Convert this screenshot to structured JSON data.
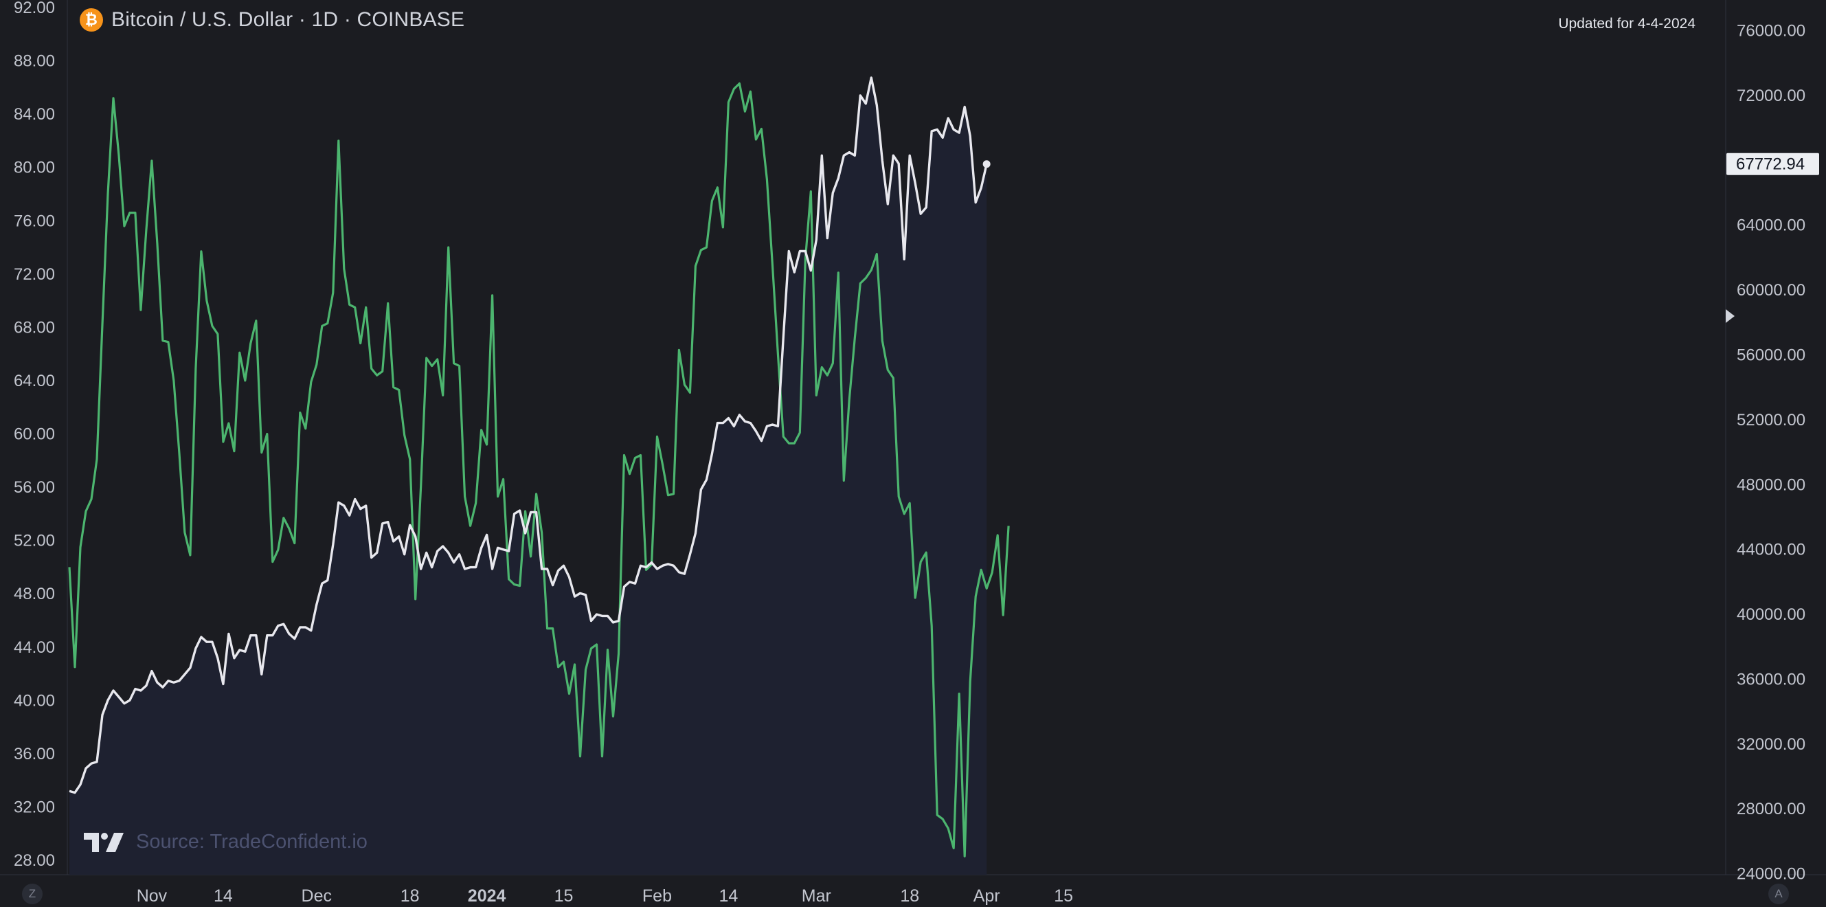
{
  "header": {
    "coin_icon": "bitcoin-icon",
    "coin_symbol": "₿",
    "title": "Bitcoin / U.S. Dollar · 1D · COINBASE",
    "updated": "Updated for 4-4-2024"
  },
  "footer": {
    "logo_icon": "tradingview-logo-icon",
    "source": "Source: TradeConfident.io",
    "left_corner": "Z",
    "right_corner": "A"
  },
  "colors": {
    "background": "#1b1c21",
    "price_line": "#e8e8ee",
    "rsi_line": "#4cb56f",
    "area_fill": "#1e2130",
    "axis_text": "#c2c5ce",
    "divider": "#2f323d"
  },
  "chart_data": {
    "type": "line",
    "title": "Bitcoin / U.S. Dollar · 1D · COINBASE",
    "left_axis": {
      "ylim": [
        28,
        92
      ],
      "ticks": [
        "92.00",
        "88.00",
        "84.00",
        "80.00",
        "76.00",
        "72.00",
        "68.00",
        "64.00",
        "60.00",
        "56.00",
        "52.00",
        "48.00",
        "44.00",
        "40.00",
        "36.00",
        "32.00",
        "28.00"
      ]
    },
    "right_axis": {
      "ylim": [
        22500,
        79500
      ],
      "ticks": [
        "76000.00",
        "72000.00",
        "68000.00",
        "64000.00",
        "60000.00",
        "56000.00",
        "52000.00",
        "48000.00",
        "44000.00",
        "40000.00",
        "36000.00",
        "32000.00",
        "28000.00",
        "24000.00"
      ],
      "last_value_label": "67772.94"
    },
    "x_axis": {
      "start": "2023-10-17",
      "end": "2024-04-04",
      "range": [
        "2023-10-17",
        "2024-04-24"
      ],
      "ticks": [
        {
          "label": "Nov",
          "date": "2023-11-01",
          "bold": false
        },
        {
          "label": "14",
          "date": "2023-11-14",
          "bold": false
        },
        {
          "label": "Dec",
          "date": "2023-12-01",
          "bold": false
        },
        {
          "label": "18",
          "date": "2023-12-18",
          "bold": false
        },
        {
          "label": "2024",
          "date": "2024-01-01",
          "bold": true
        },
        {
          "label": "15",
          "date": "2024-01-15",
          "bold": false
        },
        {
          "label": "Feb",
          "date": "2024-02-01",
          "bold": false
        },
        {
          "label": "14",
          "date": "2024-02-14",
          "bold": false
        },
        {
          "label": "Mar",
          "date": "2024-03-01",
          "bold": false
        },
        {
          "label": "18",
          "date": "2024-03-18",
          "bold": false
        },
        {
          "label": "Apr",
          "date": "2024-04-01",
          "bold": false
        },
        {
          "label": "15",
          "date": "2024-04-15",
          "bold": false
        }
      ]
    },
    "series": [
      {
        "axis": "right",
        "values": [
          29100,
          29000,
          29500,
          30500,
          30800,
          30900,
          33800,
          34700,
          35300,
          34900,
          34500,
          34700,
          35400,
          35300,
          35600,
          36500,
          35800,
          35500,
          35900,
          35800,
          35900,
          36300,
          36700,
          37900,
          38600,
          38300,
          38300,
          37300,
          35700,
          38800,
          37300,
          37800,
          37700,
          38700,
          38700,
          36300,
          38700,
          38700,
          39300,
          39400,
          38800,
          38500,
          39200,
          39200,
          39000,
          40600,
          41900,
          42100,
          44300,
          46900,
          46700,
          46100,
          47100,
          46500,
          46700,
          43500,
          43800,
          45600,
          45700,
          44500,
          44800,
          43700,
          45500,
          44800,
          42800,
          43800,
          42900,
          43900,
          44200,
          43800,
          43200,
          43700,
          42800,
          42900,
          42900,
          44100,
          44900,
          42800,
          44100,
          44000,
          43900,
          46200,
          46400,
          45000,
          46300,
          46300,
          42800,
          42800,
          41800,
          42700,
          43000,
          42300,
          41100,
          41300,
          41200,
          39600,
          40000,
          39900,
          39900,
          39500,
          39600,
          41700,
          42000,
          41900,
          43000,
          42900,
          43200,
          42800,
          43000,
          43100,
          43000,
          42600,
          42500,
          43700,
          45000,
          47700,
          48300,
          49900,
          51800,
          51800,
          52100,
          51600,
          52300,
          51900,
          51800,
          51300,
          50700,
          51600,
          51700,
          51600,
          57100,
          62400,
          61100,
          62400,
          62400,
          61200,
          63100,
          68300,
          63200,
          66000,
          66900,
          68300,
          68500,
          68300,
          72000,
          71500,
          73100,
          71400,
          68000,
          65300,
          68300,
          67800,
          61900,
          68300,
          66600,
          64700,
          65100,
          69800,
          69900,
          69400,
          70600,
          69900,
          69700,
          71300,
          69500,
          65400,
          66300,
          67772.94
        ]
      },
      {
        "axis": "left",
        "values": [
          50,
          42.5,
          51.5,
          54.2,
          55.1,
          58.1,
          68.2,
          78,
          85.2,
          80.9,
          75.6,
          76.6,
          76.6,
          69.3,
          75.3,
          80.5,
          74.3,
          67,
          66.9,
          64,
          58.6,
          52.6,
          50.9,
          64.9,
          73.7,
          70,
          68.1,
          67.5,
          59.4,
          60.8,
          58.7,
          66.1,
          64,
          66.8,
          68.5,
          58.6,
          60,
          50.4,
          51.3,
          53.7,
          52.9,
          51.8,
          61.6,
          60.4,
          63.9,
          65.2,
          68.1,
          68.3,
          70.6,
          82,
          72.4,
          69.7,
          69.5,
          66.8,
          69.5,
          64.9,
          64.4,
          64.7,
          69.8,
          63.5,
          63.3,
          59.9,
          58.1,
          47.6,
          56.1,
          65.7,
          65.1,
          65.6,
          62.9,
          74,
          65.3,
          65.1,
          55.3,
          53.1,
          54.8,
          60.3,
          59.2,
          70.4,
          55.3,
          56.6,
          49.1,
          48.7,
          48.6,
          54.2,
          50.8,
          55.5,
          52.6,
          45.4,
          45.4,
          42.5,
          42.9,
          40.5,
          42.7,
          35.8,
          42.3,
          43.9,
          44.2,
          35.8,
          43.8,
          38.8,
          43.5,
          58.4,
          57,
          58.2,
          58.4,
          49.8,
          50.2,
          59.8,
          57.7,
          55.4,
          55.5,
          66.3,
          63.7,
          63.1,
          72.6,
          73.8,
          74,
          77.5,
          78.5,
          75.5,
          84.9,
          85.9,
          86.3,
          84.2,
          85.7,
          82.1,
          82.9,
          79.1,
          72.7,
          66,
          59.8,
          59.3,
          59.3,
          60.1,
          73.1,
          78.2,
          62.9,
          65,
          64.4,
          65.3,
          72.1,
          56.5,
          62.6,
          67.2,
          71.3,
          71.7,
          72.3,
          73.5,
          67,
          64.8,
          64.2,
          55.3,
          54,
          54.8,
          47.7,
          50.4,
          51.1,
          45.6,
          31.4,
          31.1,
          30.4,
          28.9,
          40.5,
          28.3,
          41.4,
          47.8,
          49.8,
          48.4,
          49.6,
          52.4,
          46.4,
          53.1
        ]
      }
    ]
  }
}
